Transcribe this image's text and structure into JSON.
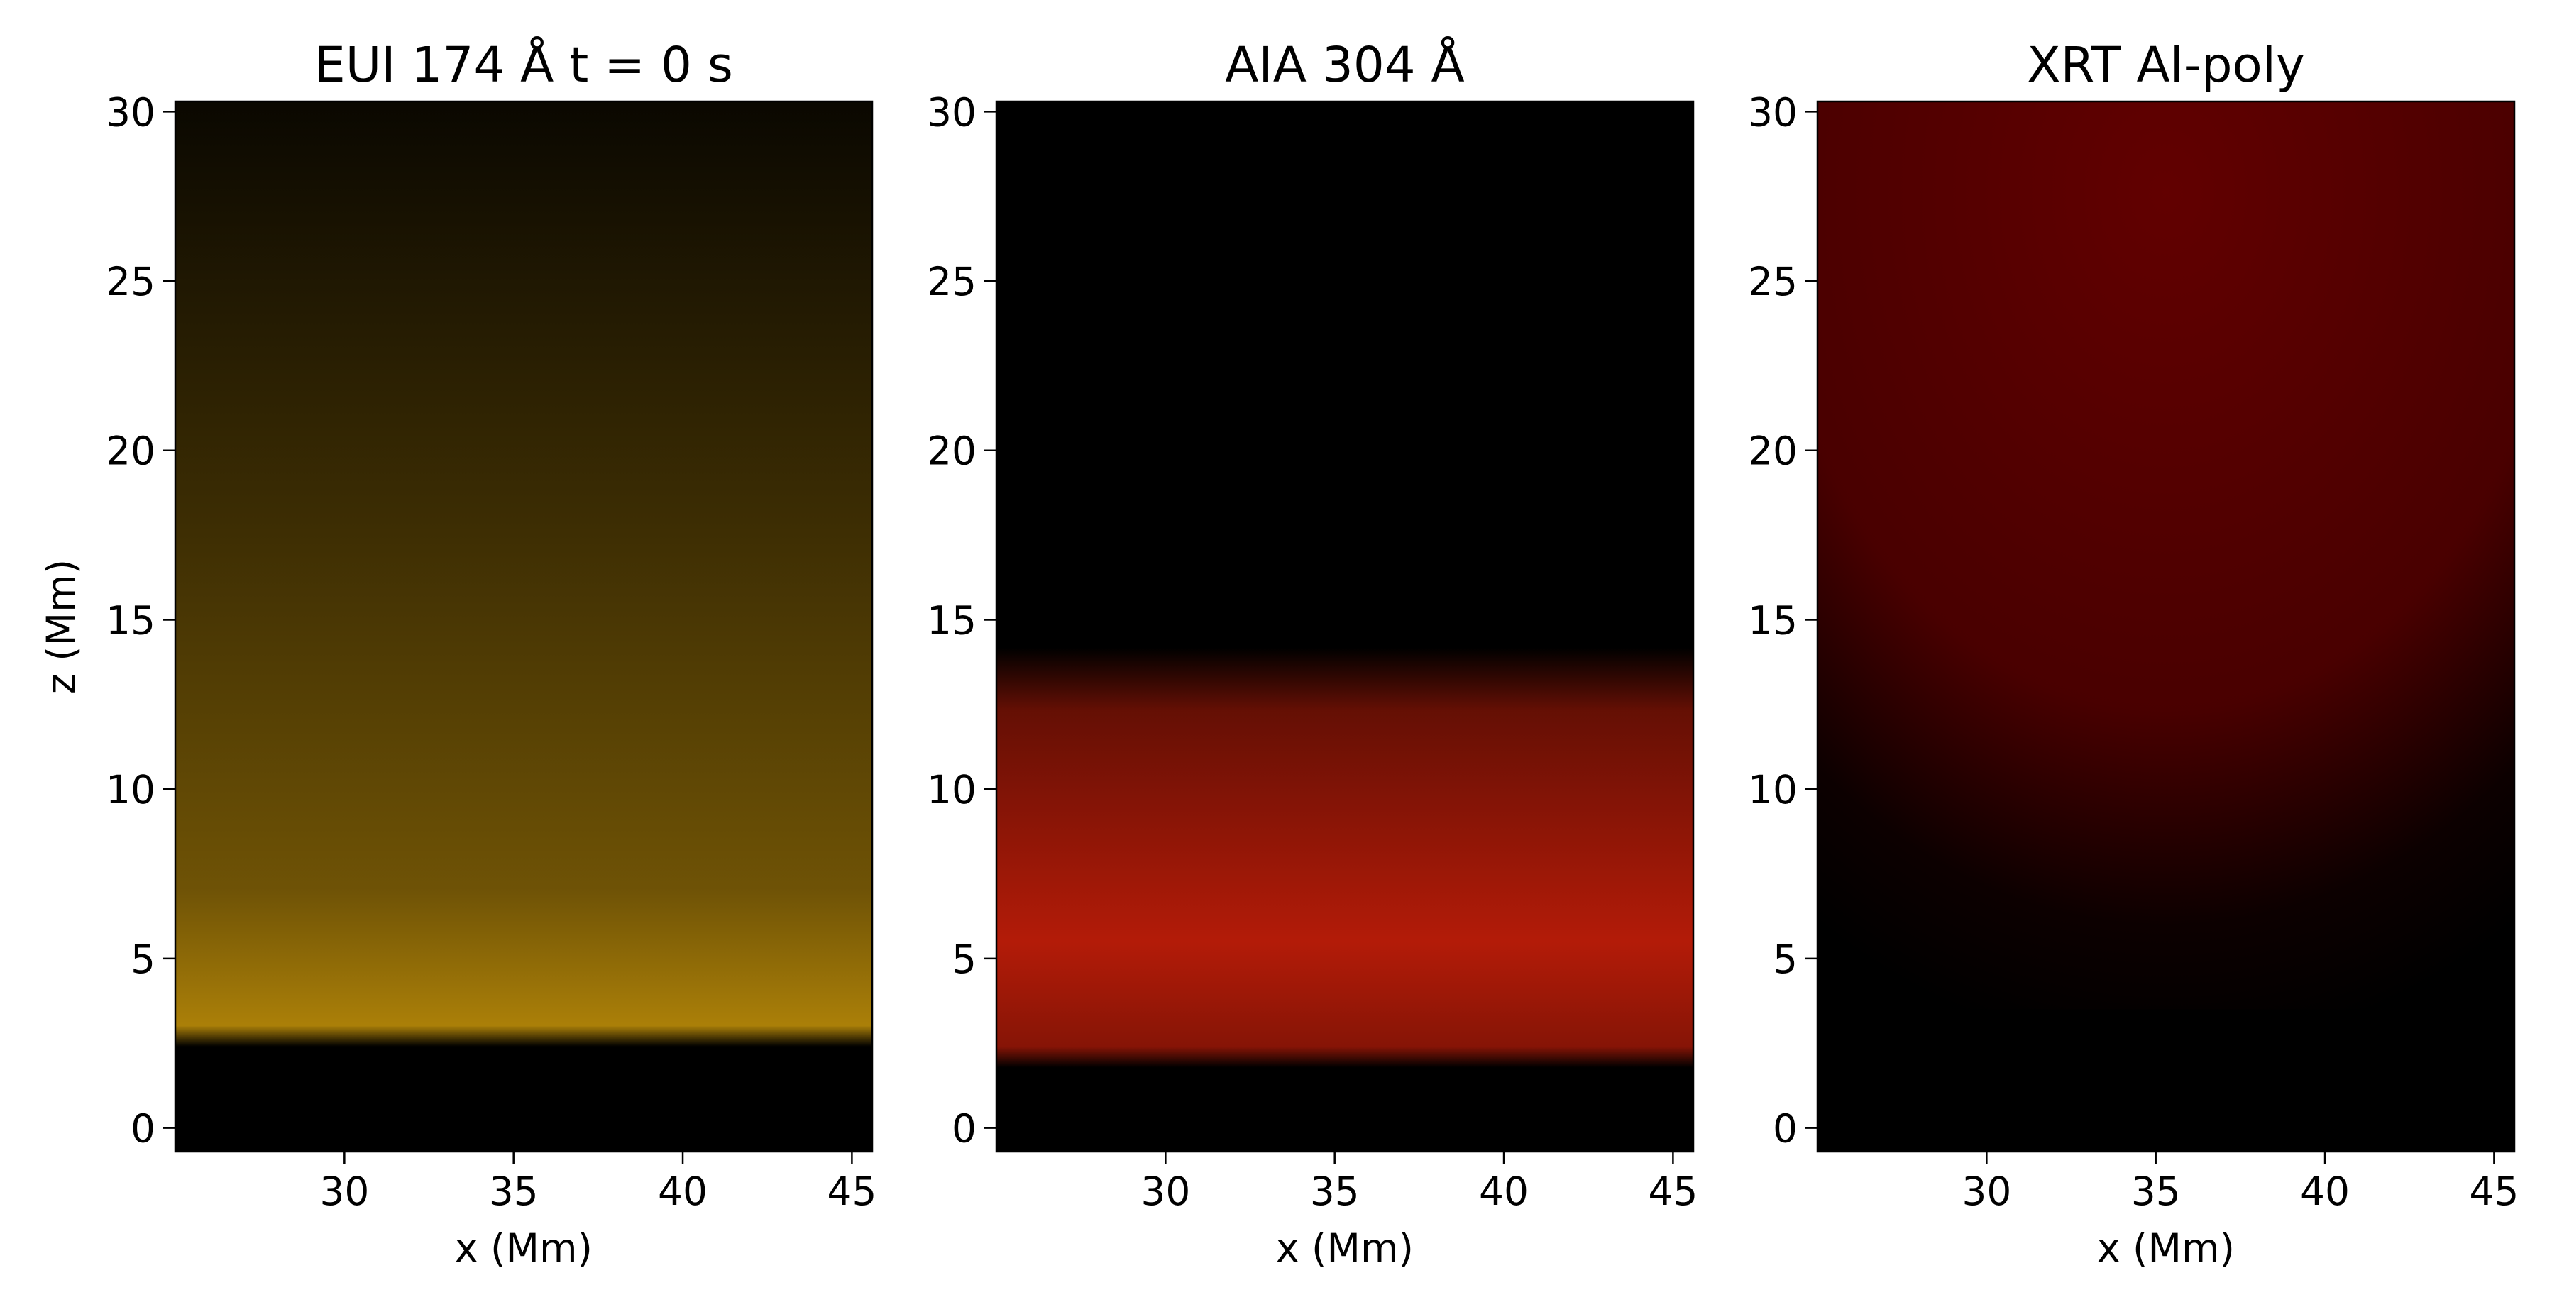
{
  "chart_data": [
    {
      "type": "image",
      "title": "EUI 174 Å  t = 0 s",
      "x_label": "x (Mm)",
      "y_label": "z (Mm)",
      "color": "#c9960a",
      "xlim": [
        25,
        45.6
      ],
      "ylim": [
        -0.7,
        30.3
      ],
      "xticks": [
        30,
        35,
        40,
        45
      ],
      "yticks": [
        0,
        5,
        10,
        15,
        20,
        25,
        30
      ]
    },
    {
      "type": "image",
      "title": "AIA 304 Å",
      "x_label": "x (Mm)",
      "color": "#e0220a",
      "xlim": [
        25,
        45.6
      ],
      "ylim": [
        -0.7,
        30.3
      ],
      "xticks": [
        30,
        35,
        40,
        45
      ],
      "yticks": [
        0,
        5,
        10,
        15,
        20,
        25,
        30
      ]
    },
    {
      "type": "image",
      "title": "XRT Al-poly",
      "x_label": "x (Mm)",
      "color": "#7a0000",
      "xlim": [
        25,
        45.6
      ],
      "ylim": [
        -0.7,
        30.3
      ],
      "xticks": [
        30,
        35,
        40,
        45
      ],
      "yticks": [
        0,
        5,
        10,
        15,
        20,
        25,
        30
      ]
    }
  ]
}
